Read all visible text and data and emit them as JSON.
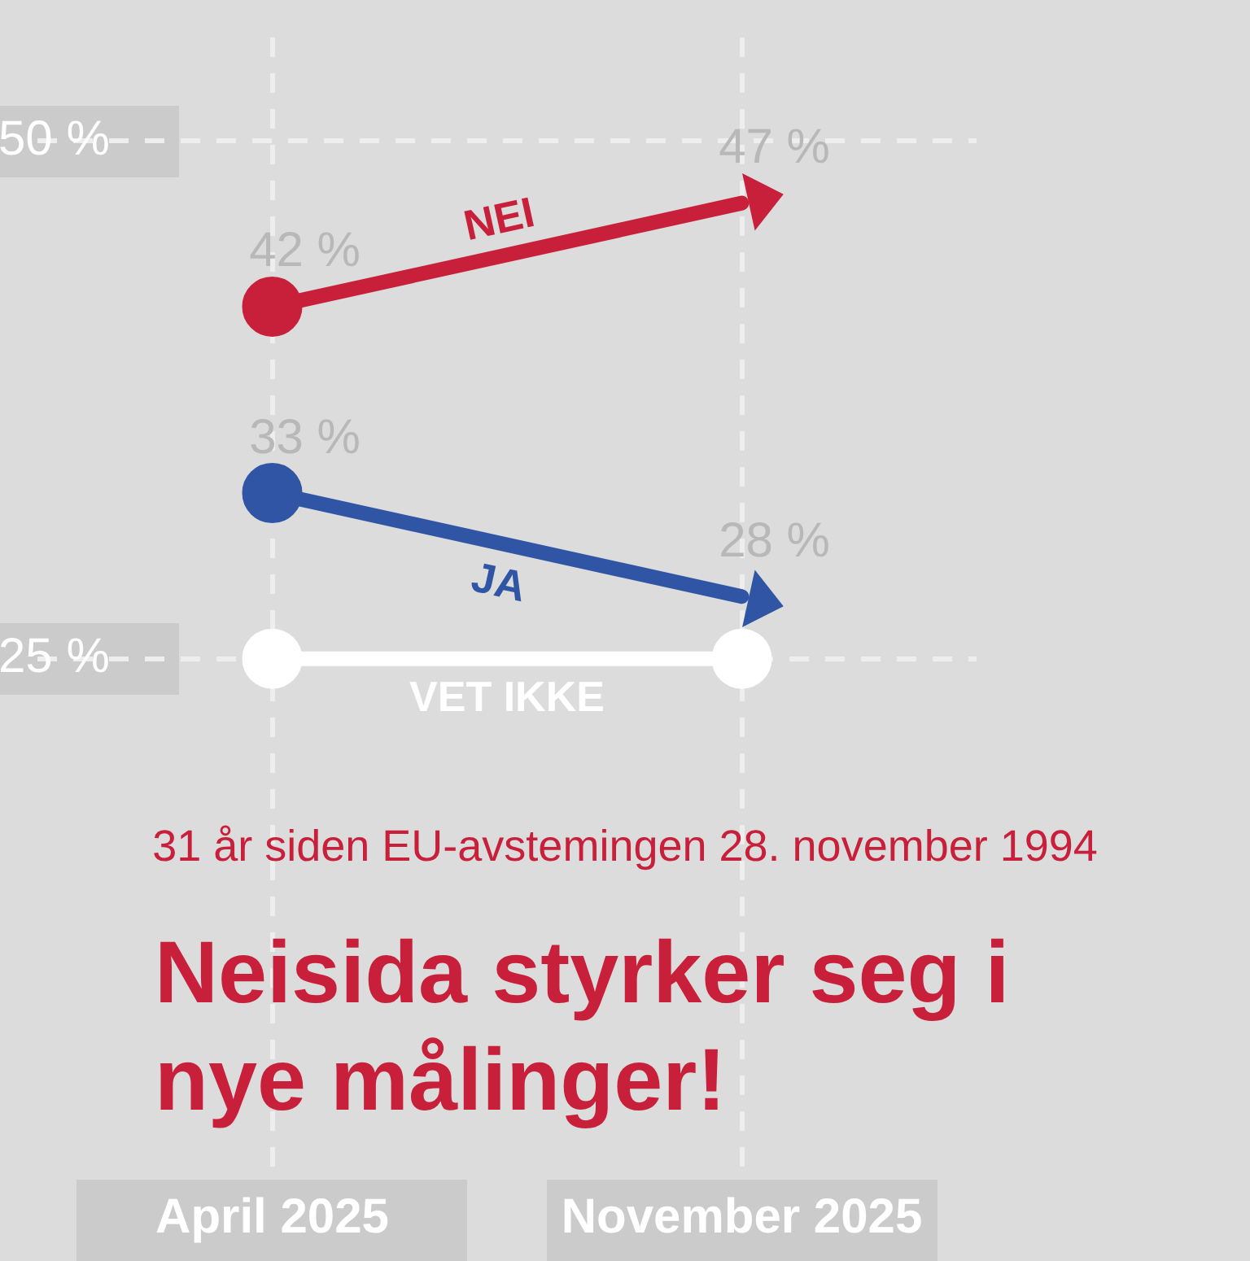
{
  "chart_data": {
    "type": "line",
    "subtitle": "31 år siden EU-avstemingen 28. november 1994",
    "title": "Neisida styrker seg i nye målinger!",
    "categories": [
      "April 2025",
      "November 2025"
    ],
    "series": [
      {
        "name": "NEI",
        "color": "#c8203a",
        "values": [
          42,
          47
        ],
        "value_labels": [
          "42 %",
          "47 %"
        ]
      },
      {
        "name": "JA",
        "color": "#2f55a4",
        "values": [
          33,
          28
        ],
        "value_labels": [
          "33 %",
          "28 %"
        ]
      },
      {
        "name": "VET IKKE",
        "color": "#ffffff",
        "values": [
          25,
          25
        ]
      }
    ],
    "marker": "circle",
    "ylim": [
      0,
      55
    ],
    "yticks": [
      {
        "value": 50,
        "label": "50 %"
      },
      {
        "value": 25,
        "label": "25 %"
      }
    ],
    "grid": true,
    "legend": false
  }
}
